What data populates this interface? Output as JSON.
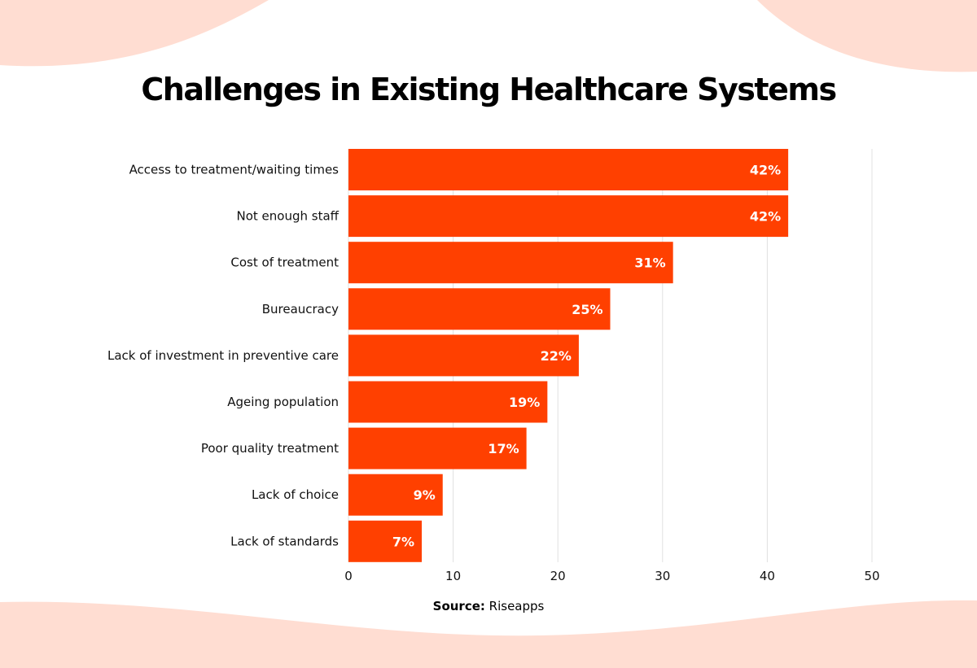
{
  "colors": {
    "bar": "#FF4000",
    "background_shape": "#FFDDD2",
    "grid": "#E0E0E0",
    "bar_label": "#FFFFFF"
  },
  "chart_data": {
    "type": "bar",
    "orientation": "horizontal",
    "title": "Challenges in Existing Healthcare Systems",
    "categories": [
      "Access to treatment/waiting times",
      "Not enough staff",
      "Cost of treatment",
      "Bureaucracy",
      "Lack of investment in preventive care",
      "Ageing population",
      "Poor quality treatment",
      "Lack of choice",
      "Lack of standards"
    ],
    "values": [
      42,
      42,
      31,
      25,
      22,
      19,
      17,
      9,
      7
    ],
    "data_labels": [
      "42%",
      "42%",
      "31%",
      "25%",
      "22%",
      "19%",
      "17%",
      "9%",
      "7%"
    ],
    "xlim": [
      0,
      50
    ],
    "xticks": [
      0,
      10,
      20,
      30,
      40,
      50
    ],
    "grid": "vertical",
    "xlabel": "",
    "ylabel": ""
  },
  "source": {
    "label": "Source:",
    "value": "Riseapps"
  }
}
